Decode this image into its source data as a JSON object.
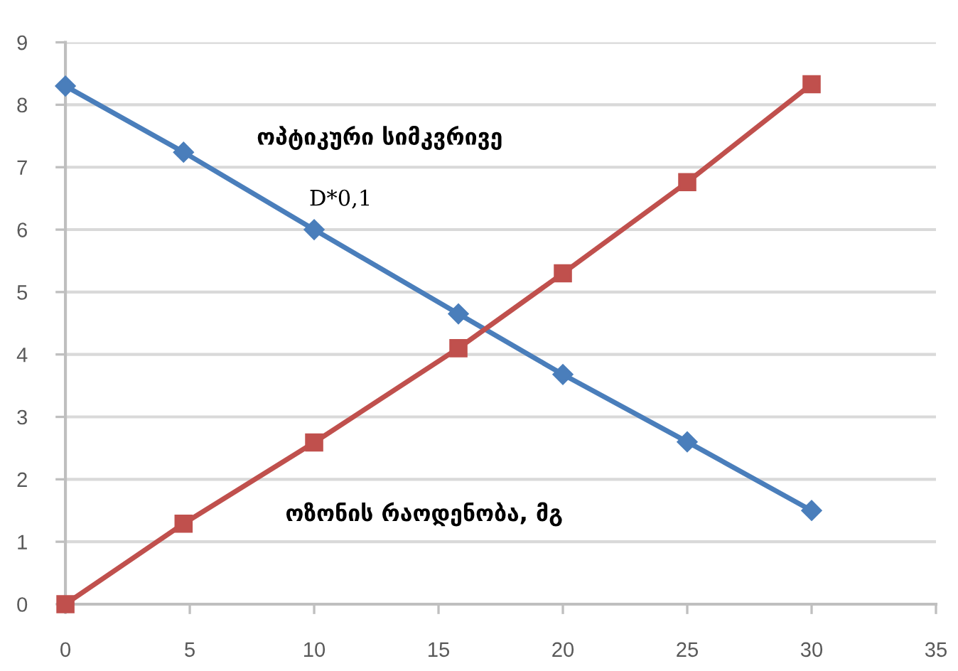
{
  "chart_data": {
    "type": "line",
    "x": [
      0,
      4.75,
      10,
      15.8,
      20,
      25,
      30
    ],
    "series": [
      {
        "name": "ოპტიკური სიმკვრივე\nD*0,1",
        "color": "#4a7ebb",
        "marker": "diamond",
        "values": [
          8.3,
          7.24,
          6.0,
          4.65,
          3.68,
          2.6,
          1.5
        ]
      },
      {
        "name": "ოზონის რაოდენობა, მგ",
        "color": "#c0504d",
        "marker": "square",
        "values": [
          0,
          1.29,
          2.59,
          4.1,
          5.3,
          6.76,
          8.33
        ]
      }
    ],
    "xlim": [
      0,
      35
    ],
    "xticks": [
      0,
      5,
      10,
      15,
      20,
      25,
      30,
      35
    ],
    "ylim": [
      0,
      9
    ],
    "yticks": [
      0,
      1,
      2,
      3,
      4,
      5,
      6,
      7,
      8,
      9
    ],
    "grid": "y",
    "line_style": "solid"
  }
}
